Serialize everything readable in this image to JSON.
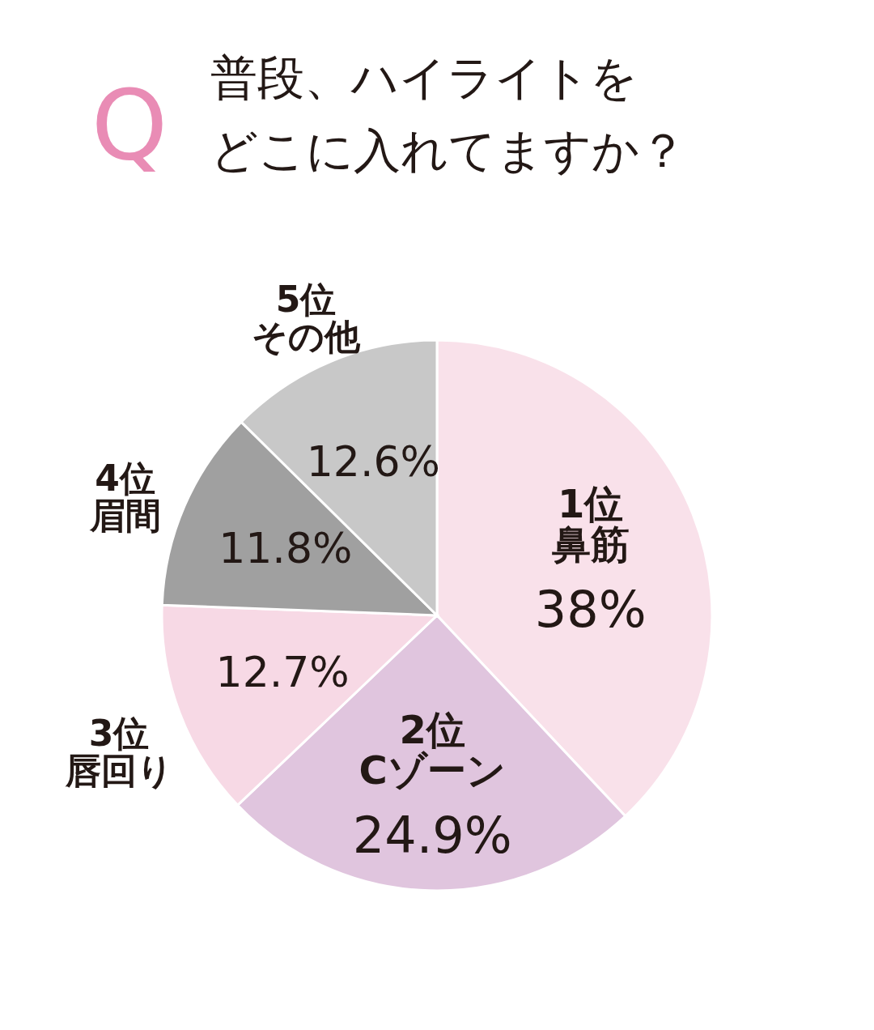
{
  "chart_data": {
    "type": "pie",
    "title": "普段、ハイライトをどこに入れてますか？",
    "annotations": [
      "Q"
    ],
    "categories": [
      "1位鼻筋",
      "2位Cゾーン",
      "3位唇回り",
      "4位眉間",
      "5位その他"
    ],
    "values": [
      38,
      24.9,
      12.7,
      11.8,
      12.6
    ],
    "value_labels": [
      "38%",
      "24.9%",
      "12.7%",
      "11.8%",
      "12.6%"
    ],
    "colors": [
      "#f9e1ea",
      "#e0c5de",
      "#f7d9e5",
      "#a0a0a0",
      "#c8c8c8"
    ]
  }
}
